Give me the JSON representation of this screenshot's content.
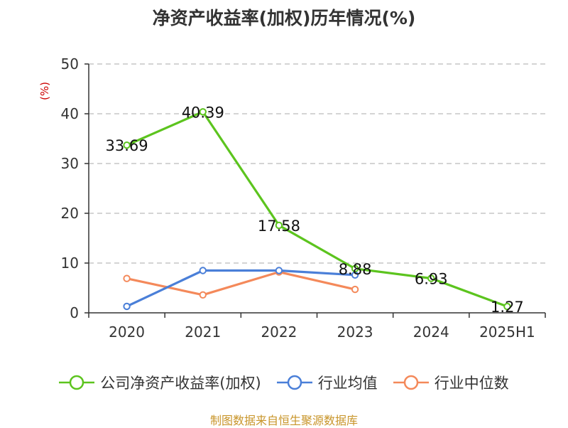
{
  "title": "净资产收益率(加权)历年情况(%)",
  "source": "制图数据来自恒生聚源数据库",
  "colors": {
    "grid": "#bbbbbb",
    "axis": "#333333",
    "unit": "#cc0000",
    "source": "#c8952a"
  },
  "chart_data": {
    "type": "line",
    "title": "净资产收益率(加权)历年情况(%)",
    "ylabel": "(%)",
    "xlabel": "",
    "categories": [
      "2020",
      "2021",
      "2022",
      "2023",
      "2024",
      "2025H1"
    ],
    "ylim": [
      0,
      50
    ],
    "yticks": [
      0,
      10,
      20,
      30,
      40,
      50
    ],
    "grid": true,
    "legend_position": "bottom",
    "series": [
      {
        "name": "公司净资产收益率(加权)",
        "color": "#5cc41e",
        "values": [
          33.69,
          40.39,
          17.58,
          8.88,
          6.93,
          1.27
        ],
        "labels": [
          "33.69",
          "40.39",
          "17.58",
          "8.88",
          "6.93",
          "1.27"
        ],
        "show_labels": true
      },
      {
        "name": "行业均值",
        "color": "#4a7fd8",
        "values": [
          1.3,
          8.5,
          8.5,
          7.6,
          null,
          null
        ],
        "show_labels": false
      },
      {
        "name": "行业中位数",
        "color": "#f4895a",
        "values": [
          6.9,
          3.6,
          8.2,
          4.7,
          null,
          null
        ],
        "show_labels": false
      }
    ]
  }
}
